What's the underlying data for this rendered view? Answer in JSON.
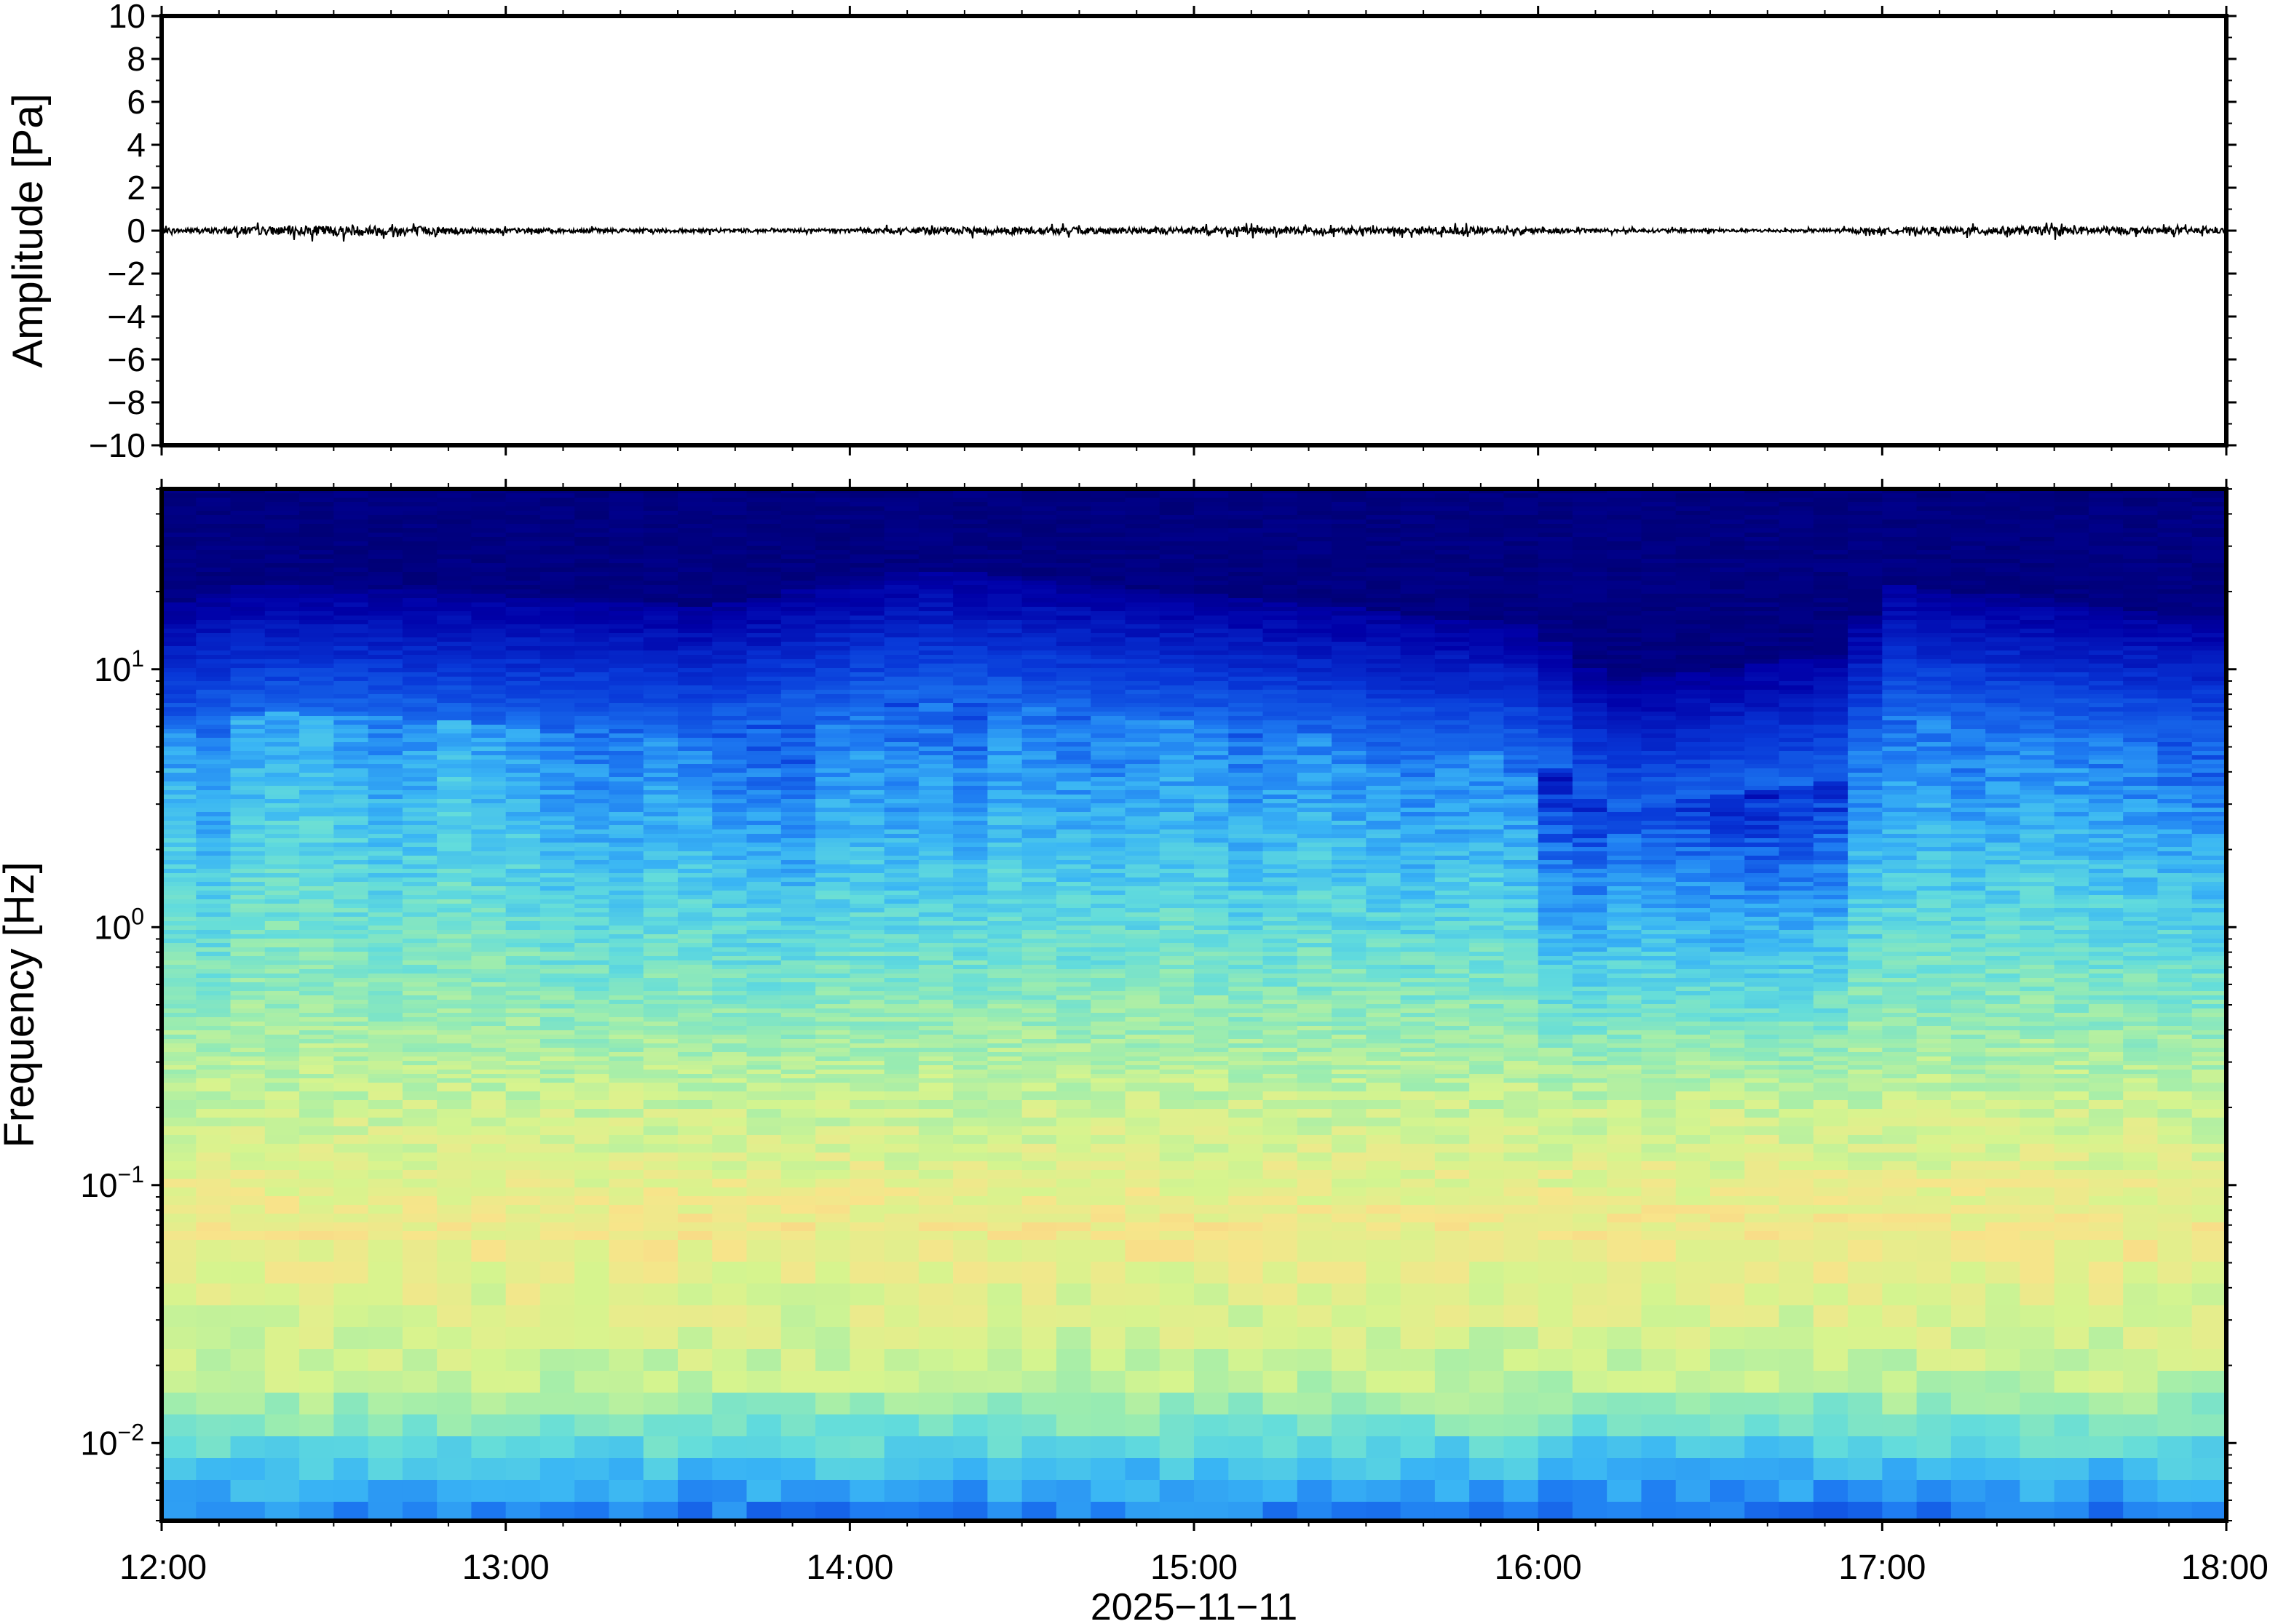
{
  "chart_data": [
    {
      "type": "line",
      "ylabel": "Amplitude [Pa]",
      "ylim": [
        -10,
        10
      ],
      "y_ticks": [
        "10",
        "8",
        "6",
        "4",
        "2",
        "0",
        "−2",
        "−4",
        "−6",
        "−8",
        "−10"
      ],
      "x_range": [
        "12:00",
        "18:00"
      ],
      "series": [
        {
          "x_hours": [
            0,
            0.25,
            0.5,
            0.75,
            1,
            1.25,
            1.5,
            1.75,
            2,
            2.25,
            2.5,
            2.75,
            3,
            3.25,
            3.5,
            3.75,
            4,
            4.25,
            4.5,
            4.75,
            5,
            5.25,
            5.5,
            5.75,
            6
          ],
          "envelope_pa": [
            0.12,
            0.22,
            0.3,
            0.26,
            0.15,
            0.12,
            0.12,
            0.1,
            0.12,
            0.2,
            0.22,
            0.18,
            0.2,
            0.2,
            0.18,
            0.22,
            0.15,
            0.1,
            0.1,
            0.08,
            0.15,
            0.22,
            0.25,
            0.2,
            0.15
          ]
        }
      ]
    },
    {
      "type": "heatmap",
      "ylabel": "Frequency [Hz]",
      "xlabel": "2025−11−11",
      "y_scale": "log",
      "ylim_hz": [
        0.005,
        50
      ],
      "y_ticks": [
        {
          "base": "10",
          "exp": "1",
          "value": 10
        },
        {
          "base": "10",
          "exp": "0",
          "value": 1
        },
        {
          "base": "10",
          "exp": "−1",
          "value": 0.1
        },
        {
          "base": "10",
          "exp": "−2",
          "value": 0.01
        }
      ],
      "x_ticks": [
        "12:00",
        "13:00",
        "14:00",
        "15:00",
        "16:00",
        "17:00",
        "18:00"
      ],
      "colormap": [
        "#00006a",
        "#0000a8",
        "#0838d8",
        "#1e7cf2",
        "#3ab6f4",
        "#62dcdc",
        "#9aecb0",
        "#d6f48e",
        "#f8e48a",
        "#f8c07e"
      ],
      "column_quietness": [
        0.15,
        0.3,
        0.05,
        0.0,
        0.0,
        0.1,
        0.2,
        0.15,
        0.0,
        0.1,
        0.15,
        0.3,
        0.35,
        0.35,
        0.25,
        0.3,
        0.4,
        0.45,
        0.5,
        0.3,
        0.25,
        0.35,
        0.3,
        0.35,
        0.2,
        0.25,
        0.3,
        0.3,
        0.25,
        0.2,
        0.25,
        0.35,
        0.3,
        0.25,
        0.3,
        0.35,
        0.4,
        0.35,
        0.3,
        0.4,
        0.9,
        1.0,
        0.85,
        0.85,
        0.9,
        1.0,
        1.0,
        0.95,
        0.9,
        0.4,
        0.3,
        0.25,
        0.35,
        0.3,
        0.25,
        0.3,
        0.35,
        0.4,
        0.45,
        0.5
      ],
      "noise_floor_hz": [
        {
          "time_hour": 0.0,
          "hz": 18
        },
        {
          "time_hour": 0.3,
          "hz": 22
        },
        {
          "time_hour": 1.6,
          "hz": 18
        },
        {
          "time_hour": 2.2,
          "hz": 25
        },
        {
          "time_hour": 4.0,
          "hz": 15
        },
        {
          "time_hour": 4.2,
          "hz": 9
        },
        {
          "time_hour": 4.9,
          "hz": 12
        },
        {
          "time_hour": 5.0,
          "hz": 22
        },
        {
          "time_hour": 6.0,
          "hz": 16
        }
      ],
      "peak_energy_band_hz": [
        0.03,
        0.2
      ],
      "low_frequency_quiet_hz": [
        0.005,
        0.015
      ]
    }
  ]
}
